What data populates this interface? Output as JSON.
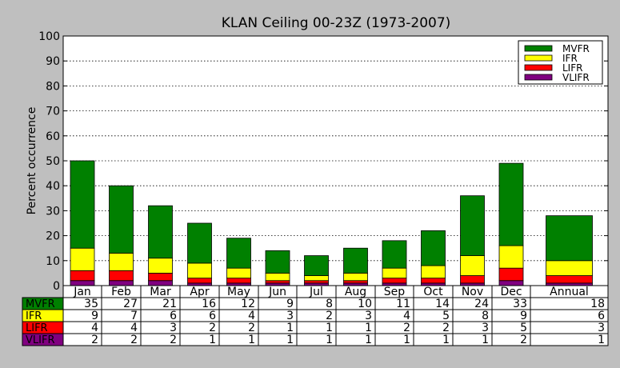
{
  "chart_data": {
    "type": "bar",
    "title": "KLAN Ceiling 00-23Z (1973-2007)",
    "xlabel": "",
    "ylabel": "Percent occurrence",
    "ylim": [
      0,
      100
    ],
    "yticks": [
      0,
      10,
      20,
      30,
      40,
      50,
      60,
      70,
      80,
      90,
      100
    ],
    "grid": "horizontal dotted",
    "stacked": true,
    "legend_position": "top-right",
    "categories": [
      "Jan",
      "Feb",
      "Mar",
      "Apr",
      "May",
      "Jun",
      "Jul",
      "Aug",
      "Sep",
      "Oct",
      "Nov",
      "Dec",
      "Annual"
    ],
    "series": [
      {
        "name": "VLIFR",
        "color": "#800080",
        "values": [
          2,
          2,
          2,
          1,
          1,
          1,
          1,
          1,
          1,
          1,
          1,
          2,
          1
        ]
      },
      {
        "name": "LIFR",
        "color": "#ff0000",
        "values": [
          4,
          4,
          3,
          2,
          2,
          1,
          1,
          1,
          2,
          2,
          3,
          5,
          3
        ]
      },
      {
        "name": "IFR",
        "color": "#ffff00",
        "values": [
          9,
          7,
          6,
          6,
          4,
          3,
          2,
          3,
          4,
          5,
          8,
          9,
          6
        ]
      },
      {
        "name": "MVFR",
        "color": "#008000",
        "values": [
          35,
          27,
          21,
          16,
          12,
          9,
          8,
          10,
          11,
          14,
          24,
          33,
          18
        ]
      }
    ],
    "table": {
      "row_order": [
        "MVFR",
        "IFR",
        "LIFR",
        "VLIFR"
      ],
      "rows": [
        {
          "label": "MVFR",
          "color": "#008000",
          "values": [
            "35",
            "27",
            "21",
            "16",
            "12",
            "9",
            "8",
            "10",
            "11",
            "14",
            "24",
            "33",
            "18"
          ]
        },
        {
          "label": "IFR",
          "color": "#ffff00",
          "values": [
            "9",
            "7",
            "6",
            "6",
            "4",
            "3",
            "2",
            "3",
            "4",
            "5",
            "8",
            "9",
            "6"
          ]
        },
        {
          "label": "LIFR",
          "color": "#ff0000",
          "values": [
            "4",
            "4",
            "3",
            "2",
            "2",
            "1",
            "1",
            "1",
            "2",
            "2",
            "3",
            "5",
            "3"
          ]
        },
        {
          "label": "VLIFR",
          "color": "#800080",
          "values": [
            "2",
            "2",
            "2",
            "1",
            "1",
            "1",
            "1",
            "1",
            "1",
            "1",
            "1",
            "2",
            "1"
          ]
        }
      ]
    }
  }
}
